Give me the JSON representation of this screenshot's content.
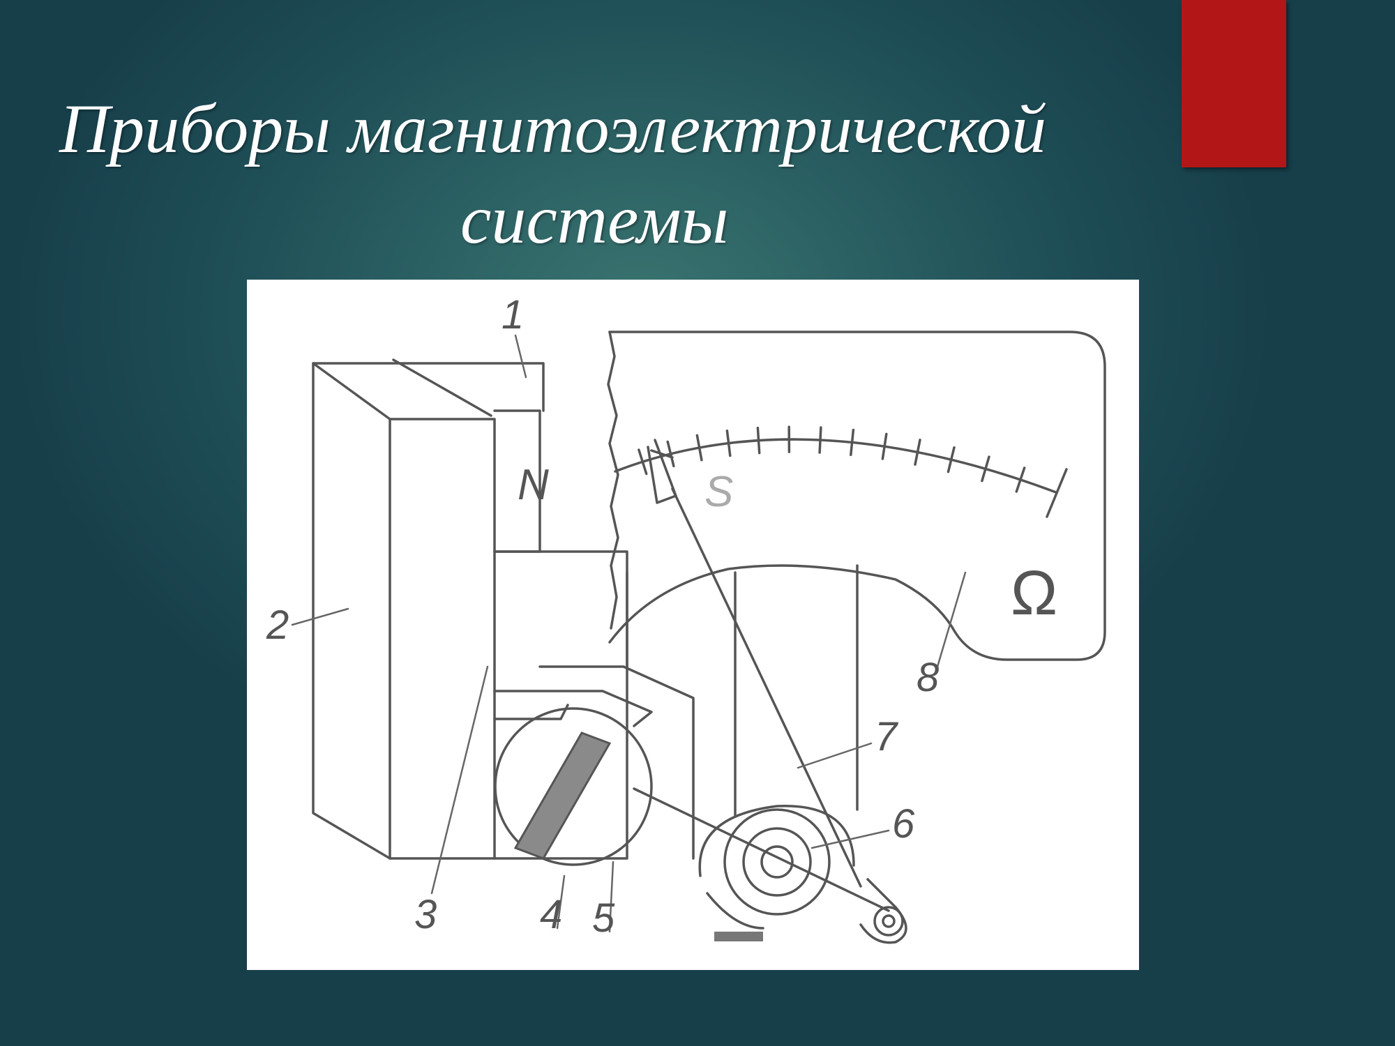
{
  "slide": {
    "title_line1": "Приборы магнитоэлектрической",
    "title_line2": "системы",
    "accent_color": "#b31616"
  },
  "figure": {
    "pole_labels": {
      "north": "N",
      "south": "S"
    },
    "part_labels": [
      "1",
      "2",
      "3",
      "4",
      "5",
      "6",
      "7",
      "8"
    ],
    "unit_symbol": "Ω"
  }
}
